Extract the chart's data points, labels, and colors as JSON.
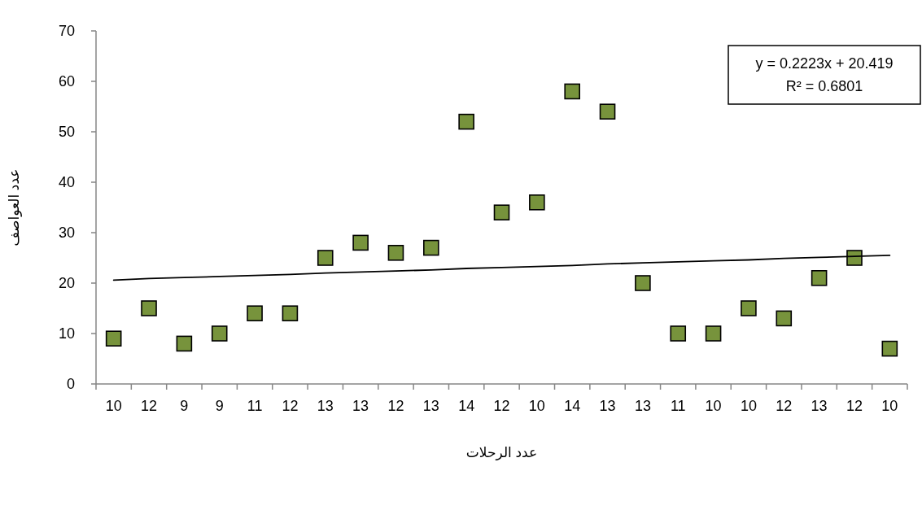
{
  "chart_data": {
    "type": "scatter",
    "xlabel": "عدد الرحلات",
    "ylabel": "عدد العواصف",
    "categories": [
      "10",
      "12",
      "9",
      "9",
      "11",
      "12",
      "13",
      "13",
      "12",
      "13",
      "14",
      "12",
      "10",
      "14",
      "13",
      "13",
      "11",
      "10",
      "10",
      "12",
      "13",
      "12",
      "10"
    ],
    "series": [
      {
        "color": "#77933c",
        "marker": "square",
        "values": [
          9,
          15,
          8,
          10,
          14,
          14,
          25,
          28,
          26,
          27,
          52,
          34,
          36,
          58,
          54,
          20,
          10,
          10,
          15,
          13,
          21,
          25,
          7
        ]
      },
      {
        "type": "line",
        "color": "#000000",
        "marker": "none",
        "line_style": "solid",
        "values": [
          20.6,
          20.9,
          21.1,
          21.3,
          21.5,
          21.7,
          22.0,
          22.2,
          22.4,
          22.6,
          22.9,
          23.1,
          23.3,
          23.5,
          23.8,
          24.0,
          24.2,
          24.4,
          24.6,
          24.9,
          25.1,
          25.3,
          25.5
        ]
      }
    ],
    "ylim": [
      0,
      70
    ],
    "yticks": [
      0,
      10,
      20,
      30,
      40,
      50,
      60,
      70
    ],
    "grid": false,
    "annotations": [
      "y = 0.2223x + 20.419",
      "R² = 0.6801"
    ]
  }
}
